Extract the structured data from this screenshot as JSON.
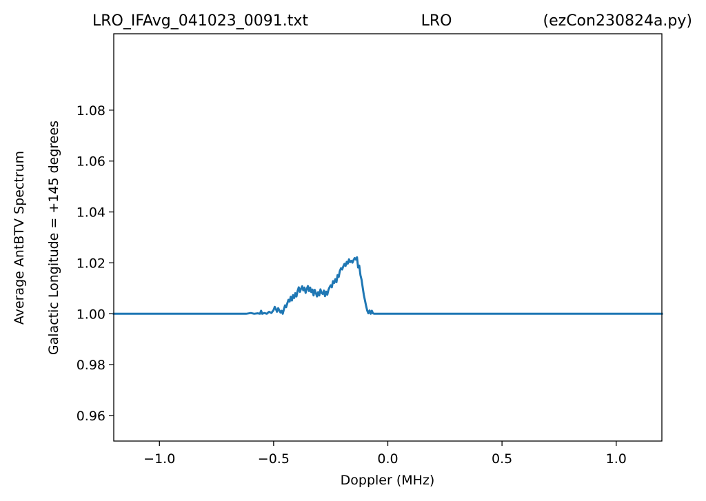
{
  "chart_data": {
    "type": "line",
    "title": {
      "left": "LRO_IFAvg_041023_0091.txt",
      "center": "LRO",
      "right": "(ezCon230824a.py)"
    },
    "xlabel": "Doppler (MHz)",
    "ylabel_line1": "Average AntBTV Spectrum",
    "ylabel_line2": "Galactic Longitude = +145 degrees",
    "xlim": [
      -1.2,
      1.2
    ],
    "ylim": [
      0.95,
      1.11
    ],
    "x_ticks": [
      -1.0,
      -0.5,
      0.0,
      0.5,
      1.0
    ],
    "x_tick_labels": [
      "−1.0",
      "−0.5",
      "0.0",
      "0.5",
      "1.0"
    ],
    "y_ticks": [
      0.96,
      0.98,
      1.0,
      1.02,
      1.04,
      1.06,
      1.08
    ],
    "y_tick_labels": [
      "0.96",
      "0.98",
      "1.00",
      "1.02",
      "1.04",
      "1.06",
      "1.08"
    ],
    "grid": false,
    "legend": "none",
    "series": [
      {
        "color": "#1f77b4",
        "x": [
          -1.2,
          -0.62,
          -0.6,
          -0.585,
          -0.57,
          -0.56,
          -0.555,
          -0.55,
          -0.54,
          -0.53,
          -0.52,
          -0.51,
          -0.5,
          -0.495,
          -0.49,
          -0.485,
          -0.48,
          -0.47,
          -0.465,
          -0.46,
          -0.455,
          -0.45,
          -0.445,
          -0.44,
          -0.435,
          -0.43,
          -0.425,
          -0.42,
          -0.415,
          -0.41,
          -0.405,
          -0.4,
          -0.395,
          -0.39,
          -0.385,
          -0.38,
          -0.375,
          -0.37,
          -0.365,
          -0.36,
          -0.355,
          -0.35,
          -0.345,
          -0.34,
          -0.335,
          -0.33,
          -0.325,
          -0.32,
          -0.315,
          -0.31,
          -0.305,
          -0.3,
          -0.295,
          -0.29,
          -0.285,
          -0.28,
          -0.275,
          -0.27,
          -0.265,
          -0.26,
          -0.255,
          -0.25,
          -0.245,
          -0.24,
          -0.235,
          -0.23,
          -0.225,
          -0.22,
          -0.215,
          -0.21,
          -0.205,
          -0.2,
          -0.195,
          -0.19,
          -0.185,
          -0.18,
          -0.175,
          -0.17,
          -0.165,
          -0.16,
          -0.155,
          -0.15,
          -0.145,
          -0.14,
          -0.135,
          -0.13,
          -0.125,
          -0.12,
          -0.115,
          -0.11,
          -0.105,
          -0.1,
          -0.095,
          -0.09,
          -0.085,
          -0.08,
          -0.075,
          -0.07,
          -0.065,
          -0.06,
          1.2
        ],
        "y": [
          1.0,
          1.0,
          1.0003,
          1.0,
          1.0002,
          1.0,
          1.0012,
          1.0,
          1.0003,
          1.0,
          1.0008,
          1.0003,
          1.0015,
          1.0027,
          1.0018,
          1.0008,
          1.0022,
          1.0005,
          1.0012,
          1.0,
          1.0018,
          1.0033,
          1.0026,
          1.0042,
          1.0055,
          1.0048,
          1.0067,
          1.0052,
          1.0073,
          1.0062,
          1.0081,
          1.0068,
          1.009,
          1.0104,
          1.0086,
          1.0098,
          1.0108,
          1.0092,
          1.0103,
          1.0082,
          1.0097,
          1.0109,
          1.0089,
          1.0103,
          1.0085,
          1.0095,
          1.0072,
          1.0094,
          1.0081,
          1.0068,
          1.0085,
          1.0072,
          1.0096,
          1.0082,
          1.0078,
          1.0091,
          1.0069,
          1.0087,
          1.0075,
          1.0094,
          1.0104,
          1.0112,
          1.0104,
          1.0128,
          1.0121,
          1.0136,
          1.0124,
          1.0152,
          1.0145,
          1.0168,
          1.0179,
          1.0174,
          1.0186,
          1.0196,
          1.0188,
          1.0204,
          1.0197,
          1.0214,
          1.0203,
          1.0208,
          1.0201,
          1.0211,
          1.0219,
          1.0213,
          1.0222,
          1.0182,
          1.0189,
          1.0152,
          1.0134,
          1.0103,
          1.0074,
          1.0052,
          1.0031,
          1.0012,
          1.0002,
          1.0013,
          1.0,
          1.0012,
          1.0002,
          1.0,
          1.0
        ]
      }
    ]
  }
}
